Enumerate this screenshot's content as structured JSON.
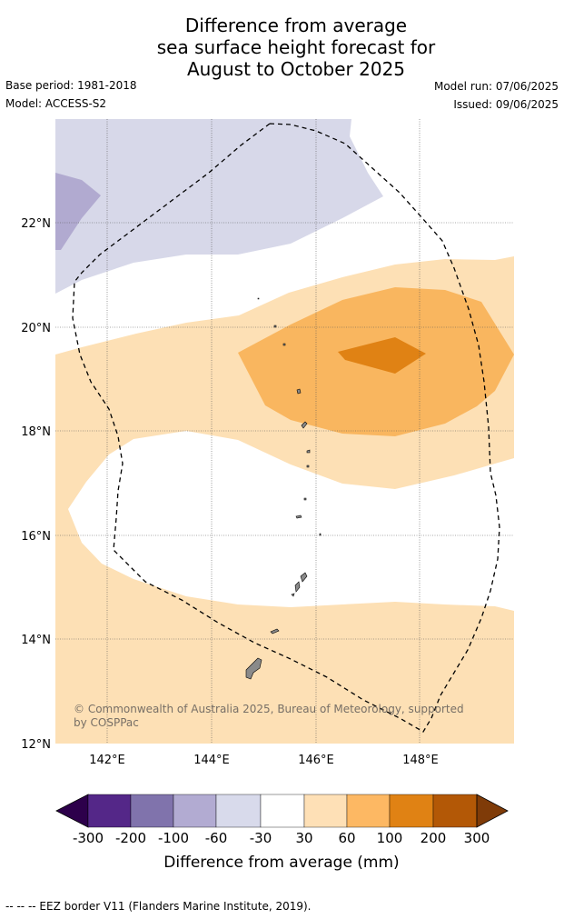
{
  "title": {
    "line1": "Difference from average",
    "line2": "sea surface height forecast for",
    "line3": "August to October 2025"
  },
  "meta": {
    "base_period": "Base period: 1981-2018",
    "model": "Model: ACCESS-S2",
    "model_run": "Model run: 07/06/2025",
    "issued": "Issued: 09/06/2025"
  },
  "map": {
    "lat_labels": [
      "22°N",
      "20°N",
      "18°N",
      "16°N",
      "14°N",
      "12°N"
    ],
    "lon_labels": [
      "142°E",
      "144°E",
      "146°E",
      "148°E"
    ],
    "copyright_line1": "© Commonwealth of Australia 2025, Bureau of Meteorology, supported",
    "copyright_line2": "by COSPPac",
    "colors": {
      "neg_30_60": "#d7d8e9",
      "neg_60_100": "#b1aad0",
      "pos_30_60": "#fde0b5",
      "pos_60_100": "#f9b65f",
      "pos_100_200": "#e08214",
      "land": "#8a8a8a"
    }
  },
  "colorbar": {
    "title": "Difference from average (mm)",
    "labels": [
      "-300",
      "-200",
      "-100",
      "-60",
      "-30",
      "30",
      "60",
      "100",
      "200",
      "300"
    ],
    "colors": [
      "#2d004b",
      "#542788",
      "#8073ac",
      "#b2abd2",
      "#d8daeb",
      "#ffffff",
      "#fee0b6",
      "#fdb863",
      "#e08214",
      "#b35806",
      "#7f3b08"
    ]
  },
  "footnote": "--  --  -- EEZ border V11 (Flanders Marine Institute, 2019)."
}
